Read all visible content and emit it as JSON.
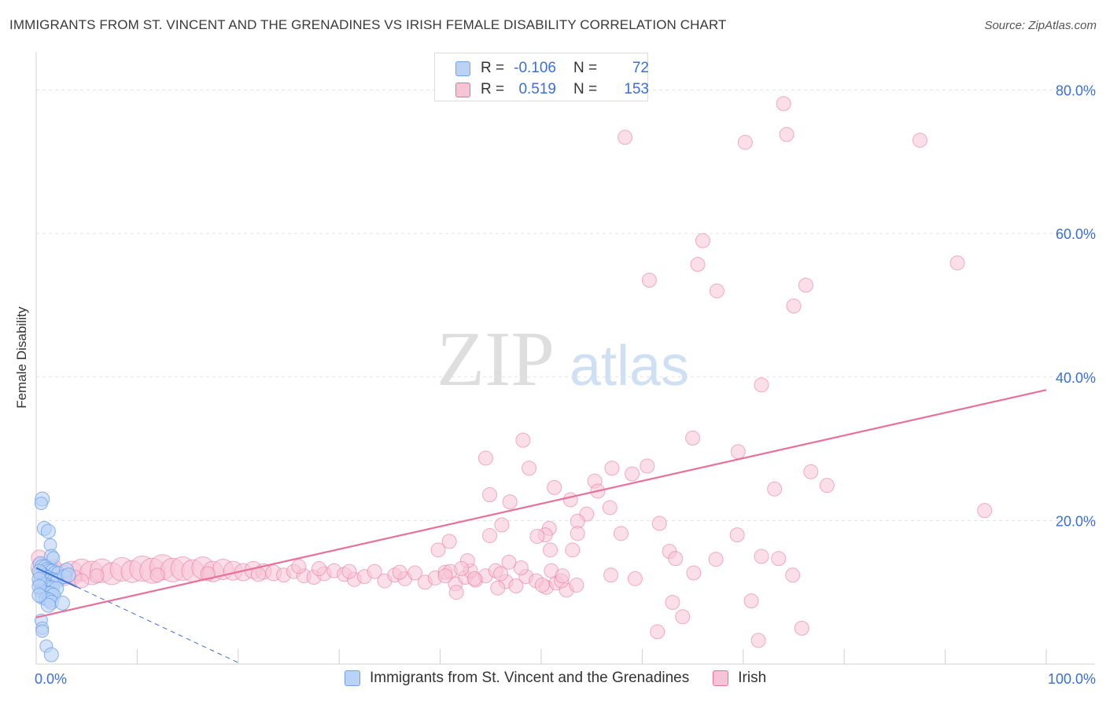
{
  "title": "IMMIGRANTS FROM ST. VINCENT AND THE GRENADINES VS IRISH FEMALE DISABILITY CORRELATION CHART",
  "source": "Source: ZipAtlas.com",
  "watermark": {
    "zip": "ZIP",
    "atlas": "atlas"
  },
  "colors": {
    "blue": "#6fa3e8",
    "blue_fill": "#b9d2f5",
    "pink": "#e8709a",
    "pink_fill": "#f7c4d5",
    "value_text": "#3b6fd6",
    "grid": "#e3e3e3"
  },
  "stats": [
    {
      "r_label": "R =",
      "r_value": "-0.106",
      "n_label": "N =",
      "n_value": "72"
    },
    {
      "r_label": "R =",
      "r_value": "0.519",
      "n_label": "N =",
      "n_value": "153"
    }
  ],
  "legend": [
    {
      "label": "Immigrants from St. Vincent and the Grenadines"
    },
    {
      "label": "Irish"
    }
  ],
  "chart_data": {
    "type": "scatter",
    "xlabel": "",
    "ylabel": "Female Disability",
    "x_tick_labels": [
      "0.0%",
      "100.0%"
    ],
    "y_tick_labels": [
      "20.0%",
      "40.0%",
      "60.0%",
      "80.0%"
    ],
    "y_ticks": [
      20,
      40,
      60,
      80
    ],
    "xlim": [
      0,
      100
    ],
    "ylim": [
      0,
      84
    ],
    "grid": true,
    "series": [
      {
        "name": "Immigrants from St. Vincent and the Grenadines",
        "color": "blue",
        "trend": {
          "x": [
            0,
            20
          ],
          "y": [
            13.4,
            0.2
          ],
          "solid_until": 4
        },
        "points": [
          [
            0.6,
            23.0,
            9
          ],
          [
            0.5,
            22.4,
            8
          ],
          [
            0.8,
            18.9,
            9
          ],
          [
            1.2,
            18.5,
            9
          ],
          [
            1.4,
            16.6,
            8
          ],
          [
            1.5,
            15.0,
            9
          ],
          [
            1.7,
            14.8,
            8
          ],
          [
            0.4,
            14.0,
            9
          ],
          [
            0.6,
            13.6,
            9
          ],
          [
            0.9,
            13.4,
            10
          ],
          [
            1.1,
            13.2,
            9
          ],
          [
            1.3,
            13.0,
            9
          ],
          [
            1.6,
            12.8,
            10
          ],
          [
            1.9,
            12.7,
            9
          ],
          [
            2.2,
            12.6,
            9
          ],
          [
            0.5,
            12.5,
            10
          ],
          [
            0.8,
            12.3,
            9
          ],
          [
            1.0,
            12.1,
            9
          ],
          [
            1.2,
            12.0,
            9
          ],
          [
            1.5,
            11.8,
            9
          ],
          [
            1.8,
            11.7,
            9
          ],
          [
            2.1,
            11.6,
            9
          ],
          [
            0.4,
            11.3,
            9
          ],
          [
            0.7,
            11.1,
            9
          ],
          [
            1.0,
            10.9,
            10
          ],
          [
            1.3,
            10.7,
            9
          ],
          [
            1.6,
            10.6,
            9
          ],
          [
            2.0,
            10.5,
            9
          ],
          [
            0.5,
            10.2,
            9
          ],
          [
            0.9,
            10.0,
            9
          ],
          [
            1.2,
            9.9,
            9
          ],
          [
            1.4,
            9.7,
            10
          ],
          [
            1.7,
            9.6,
            9
          ],
          [
            0.6,
            9.3,
            9
          ],
          [
            1.0,
            9.1,
            9
          ],
          [
            1.3,
            8.9,
            9
          ],
          [
            1.5,
            8.6,
            9
          ],
          [
            2.6,
            8.5,
            9
          ],
          [
            1.2,
            8.2,
            9
          ],
          [
            0.5,
            6.1,
            8
          ],
          [
            0.6,
            5.0,
            8
          ],
          [
            0.6,
            4.6,
            8
          ],
          [
            1.0,
            2.5,
            8
          ],
          [
            1.5,
            1.3,
            9
          ],
          [
            3.0,
            13.1,
            9
          ],
          [
            2.8,
            12.2,
            9
          ],
          [
            3.2,
            12.4,
            9
          ],
          [
            0.3,
            12.9,
            9
          ],
          [
            0.3,
            11.8,
            9
          ],
          [
            0.3,
            10.8,
            9
          ],
          [
            0.3,
            9.6,
            9
          ]
        ]
      },
      {
        "name": "Irish",
        "color": "pink",
        "trend": {
          "x": [
            0,
            100
          ],
          "y": [
            6.5,
            38.2
          ]
        },
        "points": [
          [
            0.3,
            14.8,
            10
          ],
          [
            0.5,
            13.4,
            13
          ],
          [
            1.5,
            13.0,
            12
          ],
          [
            2.5,
            12.5,
            13
          ],
          [
            3.5,
            12.8,
            14
          ],
          [
            4.5,
            13.1,
            14
          ],
          [
            5.5,
            12.7,
            15
          ],
          [
            6.5,
            13.0,
            15
          ],
          [
            7.5,
            12.6,
            14
          ],
          [
            8.5,
            13.2,
            15
          ],
          [
            9.5,
            12.9,
            14
          ],
          [
            10.5,
            13.3,
            16
          ],
          [
            11.5,
            13.0,
            16
          ],
          [
            12.5,
            13.5,
            16
          ],
          [
            13.5,
            13.1,
            15
          ],
          [
            14.5,
            13.3,
            15
          ],
          [
            15.5,
            13.0,
            14
          ],
          [
            16.5,
            13.4,
            14
          ],
          [
            17.5,
            12.9,
            13
          ],
          [
            18.5,
            13.2,
            13
          ],
          [
            19.5,
            13.0,
            12
          ],
          [
            20.5,
            12.8,
            11
          ],
          [
            21.5,
            13.1,
            11
          ],
          [
            22.5,
            12.9,
            10
          ],
          [
            23.5,
            12.7,
            10
          ],
          [
            24.5,
            12.4,
            9
          ],
          [
            25.5,
            12.9,
            9
          ],
          [
            26.5,
            12.3,
            9
          ],
          [
            27.5,
            12.1,
            9
          ],
          [
            28.5,
            12.6,
            9
          ],
          [
            29.5,
            13.0,
            9
          ],
          [
            30.5,
            12.5,
            9
          ],
          [
            31.5,
            11.8,
            9
          ],
          [
            32.5,
            12.2,
            9
          ],
          [
            33.5,
            12.9,
            9
          ],
          [
            34.5,
            11.6,
            9
          ],
          [
            35.5,
            12.4,
            9
          ],
          [
            36.5,
            11.9,
            9
          ],
          [
            37.5,
            12.7,
            9
          ],
          [
            38.5,
            11.4,
            9
          ],
          [
            39.5,
            12.0,
            9
          ],
          [
            40.5,
            12.8,
            9
          ],
          [
            41.5,
            11.2,
            9
          ],
          [
            42.5,
            12.1,
            9
          ],
          [
            43.5,
            11.7,
            9
          ],
          [
            44.5,
            12.3,
            9
          ],
          [
            45.5,
            13.0,
            9
          ],
          [
            46.5,
            11.5,
            9
          ],
          [
            47.5,
            10.9,
            9
          ],
          [
            48.5,
            12.2,
            9
          ],
          [
            49.5,
            11.6,
            9
          ],
          [
            50.5,
            10.7,
            9
          ],
          [
            51.5,
            11.3,
            9
          ],
          [
            52.5,
            10.3,
            9
          ],
          [
            53.5,
            11.0,
            9
          ],
          [
            0.8,
            12.0,
            9
          ],
          [
            1.8,
            13.6,
            9
          ],
          [
            2.8,
            11.9,
            9
          ],
          [
            3.8,
            12.1,
            9
          ],
          [
            4.5,
            11.6,
            9
          ],
          [
            6.0,
            12.3,
            9
          ],
          [
            12.0,
            12.4,
            9
          ],
          [
            17.0,
            12.6,
            9
          ],
          [
            22.0,
            12.5,
            9
          ],
          [
            26.0,
            13.6,
            9
          ],
          [
            28.0,
            13.3,
            9
          ],
          [
            31.0,
            12.9,
            9
          ],
          [
            36.0,
            12.8,
            9
          ],
          [
            41.0,
            12.9,
            9
          ],
          [
            43.0,
            13.0,
            9
          ],
          [
            46.0,
            12.6,
            9
          ],
          [
            48.0,
            13.4,
            9
          ],
          [
            51.0,
            13.0,
            9
          ],
          [
            52.0,
            11.6,
            9
          ],
          [
            58.3,
            73.4,
            9
          ],
          [
            74.0,
            78.1,
            9
          ],
          [
            74.3,
            73.8,
            9
          ],
          [
            70.2,
            72.7,
            9
          ],
          [
            87.5,
            73.0,
            9
          ],
          [
            66.0,
            59.0,
            9
          ],
          [
            65.5,
            55.7,
            9
          ],
          [
            60.7,
            53.5,
            9
          ],
          [
            67.4,
            52.0,
            9
          ],
          [
            76.2,
            52.8,
            9
          ],
          [
            75.0,
            49.9,
            9
          ],
          [
            91.2,
            55.9,
            9
          ],
          [
            71.8,
            38.9,
            9
          ],
          [
            65.0,
            31.5,
            9
          ],
          [
            48.2,
            31.2,
            9
          ],
          [
            69.5,
            29.6,
            9
          ],
          [
            44.5,
            28.7,
            9
          ],
          [
            48.8,
            27.3,
            9
          ],
          [
            57.0,
            27.3,
            9
          ],
          [
            60.5,
            27.6,
            9
          ],
          [
            59.0,
            26.5,
            9
          ],
          [
            76.7,
            26.8,
            9
          ],
          [
            78.3,
            24.9,
            9
          ],
          [
            55.3,
            25.5,
            9
          ],
          [
            51.3,
            24.6,
            9
          ],
          [
            73.1,
            24.4,
            9
          ],
          [
            55.6,
            24.1,
            9
          ],
          [
            44.9,
            23.6,
            9
          ],
          [
            46.9,
            22.6,
            9
          ],
          [
            52.9,
            22.9,
            9
          ],
          [
            56.8,
            21.8,
            9
          ],
          [
            54.5,
            20.9,
            9
          ],
          [
            53.6,
            19.9,
            9
          ],
          [
            46.1,
            19.4,
            9
          ],
          [
            61.7,
            19.6,
            9
          ],
          [
            50.8,
            18.9,
            9
          ],
          [
            57.9,
            18.2,
            9
          ],
          [
            53.6,
            18.2,
            9
          ],
          [
            50.4,
            18.0,
            9
          ],
          [
            49.6,
            17.8,
            9
          ],
          [
            44.9,
            17.9,
            9
          ],
          [
            69.4,
            18.0,
            9
          ],
          [
            93.9,
            21.4,
            9
          ],
          [
            40.9,
            17.1,
            9
          ],
          [
            39.8,
            15.9,
            9
          ],
          [
            53.1,
            15.9,
            9
          ],
          [
            50.9,
            15.9,
            9
          ],
          [
            62.7,
            15.7,
            9
          ],
          [
            71.8,
            15.0,
            9
          ],
          [
            73.5,
            14.7,
            9
          ],
          [
            63.3,
            14.7,
            9
          ],
          [
            67.3,
            14.6,
            9
          ],
          [
            42.7,
            14.4,
            9
          ],
          [
            46.8,
            14.2,
            9
          ],
          [
            42.1,
            13.3,
            9
          ],
          [
            65.1,
            12.7,
            9
          ],
          [
            74.9,
            12.4,
            9
          ],
          [
            52.1,
            12.3,
            9
          ],
          [
            56.9,
            12.4,
            9
          ],
          [
            59.3,
            11.9,
            9
          ],
          [
            43.4,
            11.9,
            9
          ],
          [
            40.5,
            12.3,
            9
          ],
          [
            50.1,
            11.0,
            9
          ],
          [
            45.7,
            10.6,
            9
          ],
          [
            41.6,
            10.0,
            9
          ],
          [
            70.8,
            8.8,
            9
          ],
          [
            63.0,
            8.6,
            9
          ],
          [
            64.0,
            6.6,
            9
          ],
          [
            61.5,
            4.5,
            9
          ],
          [
            75.8,
            5.0,
            9
          ],
          [
            71.5,
            3.3,
            9
          ]
        ]
      }
    ]
  }
}
